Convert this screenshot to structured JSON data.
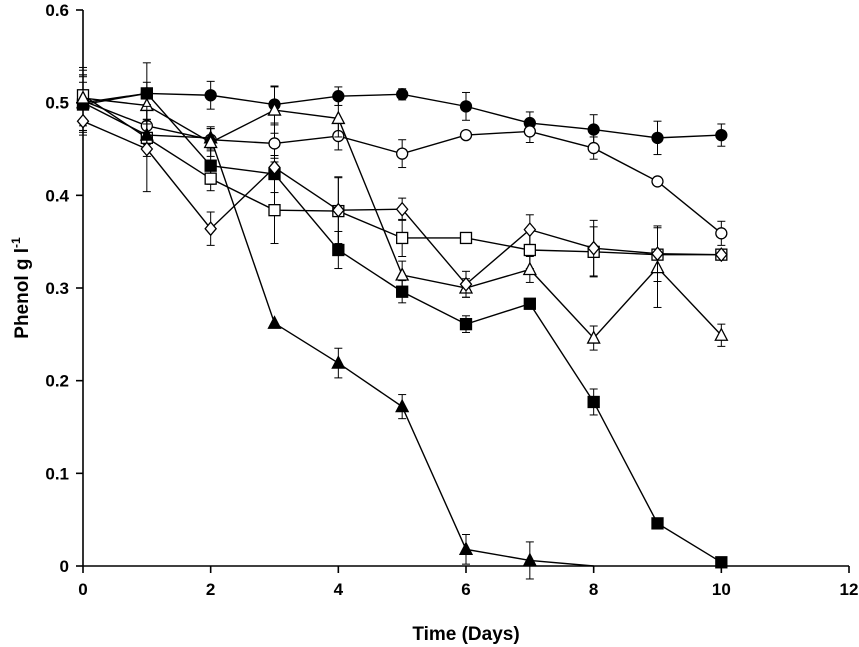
{
  "chart_data": {
    "type": "line",
    "title": "",
    "xlabel": "Time (Days)",
    "ylabel": "Phenol g l",
    "ylabel_superscript": "-1",
    "xlim": [
      0,
      12
    ],
    "ylim": [
      0,
      0.6
    ],
    "x_ticks": [
      "0",
      "2",
      "4",
      "6",
      "8",
      "10",
      "12"
    ],
    "y_ticks": [
      "0",
      "0.1",
      "0.2",
      "0.3",
      "0.4",
      "0.5",
      "0.6"
    ],
    "grid": false,
    "legend": "none",
    "series": [
      {
        "marker": "filled-circle",
        "x": [
          0,
          1,
          2,
          3,
          4,
          5,
          6,
          7,
          8,
          9,
          10
        ],
        "y": [
          0.5,
          0.51,
          0.508,
          0.498,
          0.507,
          0.509,
          0.496,
          0.478,
          0.471,
          0.462,
          0.465
        ],
        "err": [
          0.03,
          0.012,
          0.015,
          0.02,
          0.01,
          0.006,
          0.015,
          0.012,
          0.016,
          0.018,
          0.012
        ]
      },
      {
        "marker": "open-circle",
        "x": [
          0,
          1,
          2,
          3,
          4,
          5,
          6,
          7,
          8,
          9,
          10
        ],
        "y": [
          0.502,
          0.475,
          0.46,
          0.456,
          0.464,
          0.445,
          0.465,
          0.469,
          0.451,
          0.415,
          0.359
        ],
        "err": [
          0.02,
          0.02,
          0.012,
          0.02,
          0.015,
          0.015,
          0.0,
          0.012,
          0.012,
          0.0,
          0.013
        ]
      },
      {
        "marker": "filled-square",
        "x": [
          0,
          1,
          2,
          3,
          4,
          5,
          6,
          7,
          8,
          9,
          10
        ],
        "y": [
          0.498,
          0.51,
          0.432,
          0.423,
          0.341,
          0.296,
          0.261,
          0.283,
          0.177,
          0.046,
          0.004
        ],
        "err": [
          0.03,
          0.033,
          0.02,
          0.02,
          0.02,
          0.012,
          0.009,
          0.0,
          0.014,
          0.0,
          0.0
        ]
      },
      {
        "marker": "open-square",
        "x": [
          0,
          1,
          2,
          3,
          4,
          5,
          6,
          7,
          8,
          9,
          10
        ],
        "y": [
          0.508,
          0.462,
          0.418,
          0.384,
          0.383,
          0.354,
          0.354,
          0.341,
          0.339,
          0.336,
          0.336
        ],
        "err": [
          0.03,
          0.02,
          0.013,
          0.036,
          0.036,
          0.02,
          0.0,
          0.02,
          0.027,
          0.0,
          0.0
        ]
      },
      {
        "marker": "filled-triangle",
        "x": [
          0,
          1,
          2,
          3,
          4,
          5,
          6,
          7,
          8
        ],
        "y": [
          0.5,
          0.465,
          0.462,
          0.262,
          0.219,
          0.172,
          0.018,
          0.006,
          0.0
        ],
        "err": [
          0.03,
          0.015,
          0.012,
          0.0,
          0.016,
          0.013,
          0.016,
          0.02,
          0.0
        ]
      },
      {
        "marker": "open-triangle",
        "x": [
          0,
          1,
          2,
          3,
          4,
          5,
          6,
          7,
          8,
          9,
          10
        ],
        "y": [
          0.505,
          0.497,
          0.457,
          0.492,
          0.483,
          0.314,
          0.3,
          0.32,
          0.246,
          0.322,
          0.249
        ],
        "err": [
          0.03,
          0.015,
          0.015,
          0.025,
          0.02,
          0.015,
          0.01,
          0.014,
          0.013,
          0.043,
          0.012
        ]
      },
      {
        "marker": "open-diamond",
        "x": [
          0,
          1,
          2,
          3,
          4,
          5,
          6,
          7,
          8,
          9,
          10
        ],
        "y": [
          0.48,
          0.45,
          0.364,
          0.43,
          0.384,
          0.385,
          0.304,
          0.363,
          0.343,
          0.337,
          0.336
        ],
        "err": [
          0.015,
          0.046,
          0.018,
          0.01,
          0.036,
          0.012,
          0.014,
          0.016,
          0.03,
          0.03,
          0.0
        ]
      }
    ]
  }
}
